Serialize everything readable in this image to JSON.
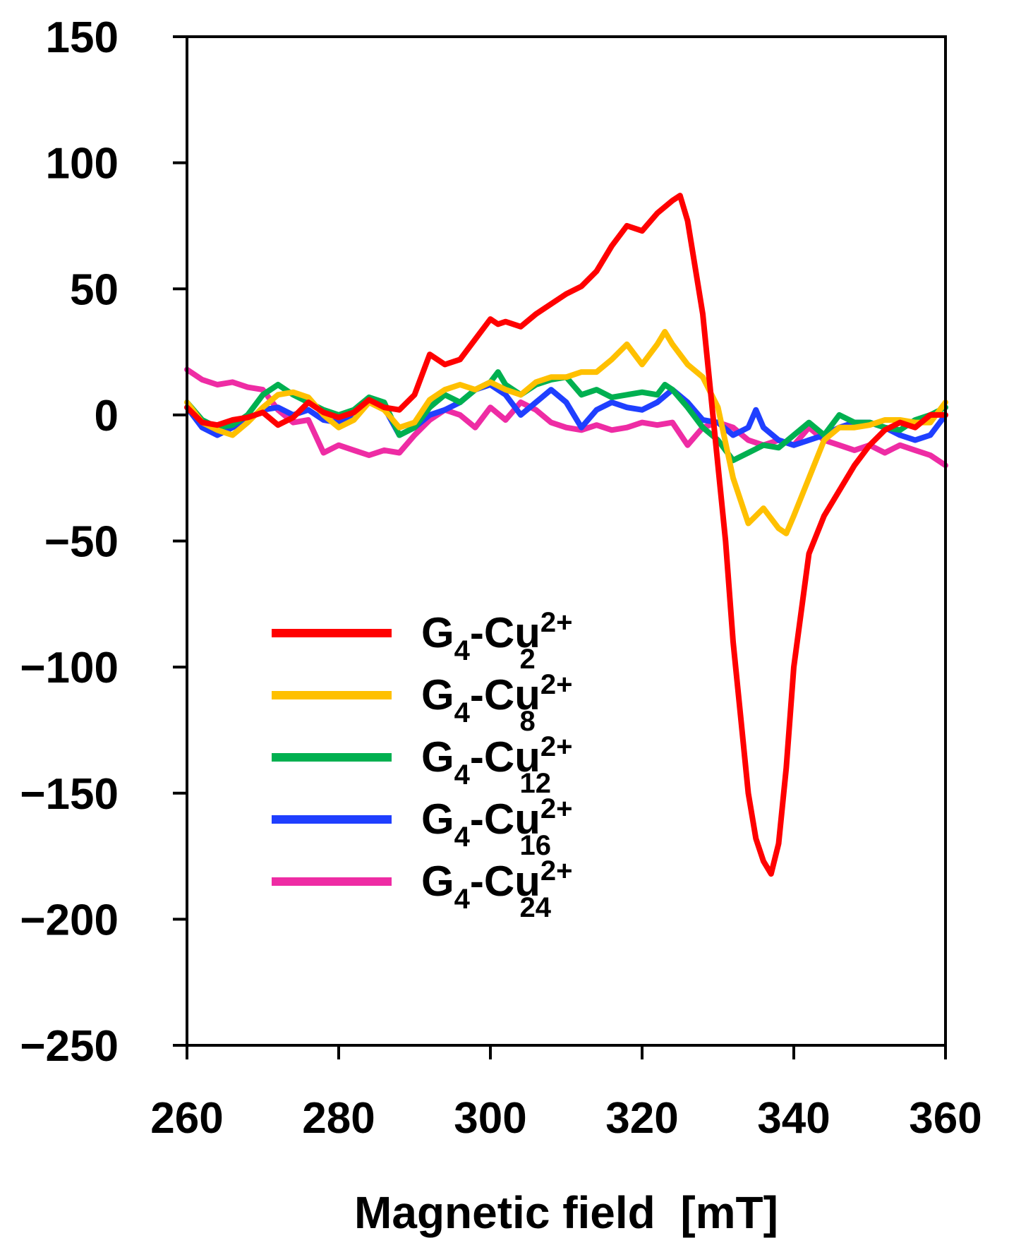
{
  "chart_data": {
    "type": "line",
    "title": "",
    "xlabel": "Magnetic field  [mT]",
    "ylabel": "",
    "xlim": [
      260,
      360
    ],
    "ylim": [
      -250,
      150
    ],
    "xticks": [
      260,
      280,
      300,
      320,
      340,
      360
    ],
    "yticks": [
      150,
      100,
      50,
      0,
      -50,
      -100,
      -150,
      -200,
      -250
    ],
    "ytick_labels": [
      "150",
      "100",
      "50",
      "0",
      "−50",
      "−100",
      "−150",
      "−200",
      "−250"
    ],
    "grid": false,
    "legend_position": "lower-left",
    "legend_label_parts": {
      "base": "G",
      "base_sub": "4",
      "mid": "-Cu",
      "sup": "2+"
    },
    "series": [
      {
        "name": "G4-Cu2+2",
        "label_sub": "2",
        "color": "#ff0000",
        "x": [
          260,
          262,
          264,
          266,
          268,
          270,
          272,
          274,
          276,
          278,
          280,
          282,
          284,
          286,
          288,
          290,
          292,
          294,
          296,
          298,
          300,
          301,
          302,
          304,
          306,
          308,
          310,
          312,
          314,
          316,
          318,
          320,
          322,
          324,
          325,
          326,
          328,
          330,
          331,
          332,
          333,
          334,
          335,
          336,
          337,
          338,
          339,
          340,
          342,
          344,
          346,
          348,
          350,
          352,
          354,
          356,
          358,
          360
        ],
        "y": [
          3,
          -3,
          -4,
          -2,
          -1,
          1,
          -4,
          -1,
          5,
          1,
          -1,
          1,
          6,
          3,
          2,
          8,
          24,
          20,
          22,
          30,
          38,
          36,
          37,
          35,
          40,
          44,
          48,
          51,
          57,
          67,
          75,
          73,
          80,
          85,
          87,
          77,
          40,
          -20,
          -50,
          -90,
          -120,
          -150,
          -168,
          -177,
          -182,
          -170,
          -140,
          -100,
          -55,
          -40,
          -30,
          -20,
          -12,
          -6,
          -3,
          -5,
          0,
          0
        ]
      },
      {
        "name": "G4-Cu2+8",
        "label_sub": "8",
        "color": "#ffc000",
        "x": [
          260,
          262,
          264,
          266,
          268,
          270,
          272,
          274,
          276,
          278,
          280,
          282,
          284,
          286,
          288,
          290,
          292,
          294,
          296,
          298,
          300,
          302,
          304,
          306,
          308,
          310,
          312,
          314,
          316,
          318,
          320,
          322,
          323,
          324,
          326,
          328,
          330,
          332,
          334,
          335,
          336,
          338,
          339,
          340,
          342,
          344,
          346,
          348,
          350,
          352,
          354,
          356,
          358,
          360
        ],
        "y": [
          5,
          -3,
          -6,
          -8,
          -3,
          3,
          8,
          9,
          7,
          0,
          -5,
          -2,
          5,
          2,
          -5,
          -3,
          6,
          10,
          12,
          10,
          13,
          10,
          8,
          13,
          15,
          15,
          17,
          17,
          22,
          28,
          20,
          28,
          33,
          28,
          20,
          15,
          3,
          -25,
          -43,
          -40,
          -37,
          -45,
          -47,
          -40,
          -25,
          -10,
          -5,
          -5,
          -4,
          -2,
          -2,
          -3,
          -3,
          5
        ]
      },
      {
        "name": "G4-Cu2+12",
        "label_sub": "12",
        "color": "#00b050",
        "x": [
          260,
          262,
          264,
          266,
          268,
          270,
          272,
          274,
          276,
          278,
          280,
          282,
          284,
          286,
          288,
          290,
          292,
          294,
          296,
          298,
          300,
          301,
          302,
          304,
          306,
          308,
          310,
          312,
          314,
          316,
          318,
          320,
          322,
          323,
          324,
          326,
          328,
          330,
          332,
          334,
          336,
          338,
          340,
          342,
          344,
          346,
          348,
          350,
          352,
          354,
          356,
          358,
          360
        ],
        "y": [
          5,
          -2,
          -5,
          -4,
          0,
          8,
          12,
          8,
          5,
          2,
          0,
          2,
          7,
          5,
          -8,
          -5,
          3,
          8,
          5,
          10,
          13,
          17,
          12,
          8,
          12,
          14,
          15,
          8,
          10,
          7,
          8,
          9,
          8,
          12,
          10,
          3,
          -5,
          -10,
          -18,
          -15,
          -12,
          -13,
          -8,
          -3,
          -8,
          0,
          -3,
          -3,
          -5,
          -6,
          -2,
          0,
          3
        ]
      },
      {
        "name": "G4-Cu2+16",
        "label_sub": "16",
        "color": "#1f3fff",
        "x": [
          260,
          262,
          264,
          266,
          268,
          270,
          272,
          274,
          276,
          278,
          280,
          282,
          284,
          286,
          288,
          290,
          292,
          294,
          296,
          298,
          300,
          302,
          304,
          306,
          308,
          310,
          312,
          314,
          316,
          318,
          320,
          322,
          324,
          326,
          328,
          330,
          332,
          334,
          335,
          336,
          338,
          340,
          342,
          344,
          346,
          348,
          350,
          352,
          354,
          356,
          358,
          360
        ],
        "y": [
          3,
          -5,
          -8,
          -5,
          -2,
          2,
          3,
          0,
          2,
          -2,
          -3,
          0,
          5,
          3,
          -8,
          -5,
          0,
          2,
          5,
          10,
          12,
          8,
          0,
          5,
          10,
          5,
          -5,
          2,
          5,
          3,
          2,
          5,
          10,
          5,
          -2,
          -3,
          -8,
          -5,
          2,
          -5,
          -10,
          -12,
          -10,
          -8,
          -5,
          -3,
          -3,
          -5,
          -8,
          -10,
          -8,
          0
        ]
      },
      {
        "name": "G4-Cu2+24",
        "label_sub": "24",
        "color": "#ee2ca4",
        "x": [
          260,
          262,
          264,
          266,
          268,
          270,
          272,
          274,
          276,
          278,
          280,
          282,
          284,
          286,
          288,
          290,
          292,
          294,
          296,
          298,
          300,
          302,
          304,
          306,
          308,
          310,
          312,
          314,
          316,
          318,
          320,
          322,
          324,
          326,
          328,
          330,
          332,
          334,
          336,
          338,
          340,
          342,
          344,
          346,
          348,
          350,
          352,
          354,
          356,
          358,
          360
        ],
        "y": [
          18,
          14,
          12,
          13,
          11,
          10,
          2,
          -3,
          -2,
          -15,
          -12,
          -14,
          -16,
          -14,
          -15,
          -8,
          -2,
          2,
          0,
          -5,
          3,
          -2,
          5,
          2,
          -3,
          -5,
          -6,
          -4,
          -6,
          -5,
          -3,
          -4,
          -3,
          -12,
          -5,
          -3,
          -5,
          -10,
          -12,
          -10,
          -12,
          -5,
          -10,
          -12,
          -14,
          -12,
          -15,
          -12,
          -14,
          -16,
          -20
        ]
      }
    ]
  }
}
